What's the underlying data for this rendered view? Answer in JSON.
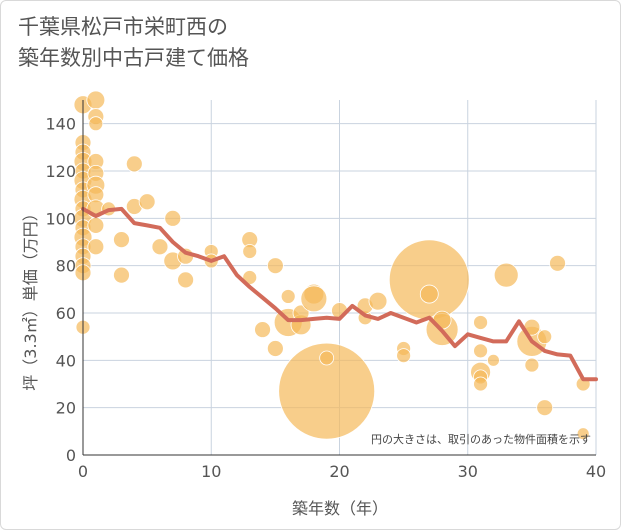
{
  "title_line1": "千葉県松戸市栄町西の",
  "title_line2": "築年数別中古戸建て価格",
  "chart_data": {
    "type": "scatter",
    "xlabel": "築年数（年）",
    "ylabel": "坪（3.3㎡）単価（万円）",
    "xlim": [
      0,
      40
    ],
    "ylim": [
      0,
      150
    ],
    "xticks": [
      0,
      10,
      20,
      30,
      40
    ],
    "yticks": [
      0,
      20,
      40,
      60,
      80,
      100,
      120,
      140
    ],
    "note": "円の大きさは、取引のあった物件面積を示す",
    "bubble_color": "#f5b95a",
    "line_color": "#d26b5a",
    "points": [
      {
        "x": 0,
        "y": 148,
        "s": 9
      },
      {
        "x": 0,
        "y": 132,
        "s": 8
      },
      {
        "x": 0,
        "y": 128,
        "s": 8
      },
      {
        "x": 0,
        "y": 124,
        "s": 9
      },
      {
        "x": 0,
        "y": 120,
        "s": 8
      },
      {
        "x": 0,
        "y": 116,
        "s": 9
      },
      {
        "x": 0,
        "y": 112,
        "s": 8
      },
      {
        "x": 0,
        "y": 108,
        "s": 9
      },
      {
        "x": 0,
        "y": 104,
        "s": 8
      },
      {
        "x": 0,
        "y": 100,
        "s": 9
      },
      {
        "x": 0,
        "y": 96,
        "s": 8
      },
      {
        "x": 0,
        "y": 92,
        "s": 9
      },
      {
        "x": 0,
        "y": 88,
        "s": 8
      },
      {
        "x": 0,
        "y": 84,
        "s": 8
      },
      {
        "x": 0,
        "y": 80,
        "s": 8
      },
      {
        "x": 0,
        "y": 77,
        "s": 8
      },
      {
        "x": 0,
        "y": 54,
        "s": 7
      },
      {
        "x": 1,
        "y": 150,
        "s": 9
      },
      {
        "x": 1,
        "y": 143,
        "s": 8
      },
      {
        "x": 1,
        "y": 140,
        "s": 7
      },
      {
        "x": 1,
        "y": 124,
        "s": 8
      },
      {
        "x": 1,
        "y": 119,
        "s": 8
      },
      {
        "x": 1,
        "y": 114,
        "s": 9
      },
      {
        "x": 1,
        "y": 110,
        "s": 8
      },
      {
        "x": 1,
        "y": 104,
        "s": 9
      },
      {
        "x": 1,
        "y": 97,
        "s": 8
      },
      {
        "x": 1,
        "y": 88,
        "s": 8
      },
      {
        "x": 2,
        "y": 104,
        "s": 7
      },
      {
        "x": 3,
        "y": 91,
        "s": 8
      },
      {
        "x": 3,
        "y": 76,
        "s": 8
      },
      {
        "x": 4,
        "y": 123,
        "s": 8
      },
      {
        "x": 4,
        "y": 105,
        "s": 8
      },
      {
        "x": 5,
        "y": 107,
        "s": 8
      },
      {
        "x": 6,
        "y": 88,
        "s": 8
      },
      {
        "x": 7,
        "y": 100,
        "s": 8
      },
      {
        "x": 7,
        "y": 82,
        "s": 9
      },
      {
        "x": 8,
        "y": 84,
        "s": 8
      },
      {
        "x": 8,
        "y": 74,
        "s": 8
      },
      {
        "x": 10,
        "y": 86,
        "s": 7
      },
      {
        "x": 10,
        "y": 82,
        "s": 7
      },
      {
        "x": 13,
        "y": 91,
        "s": 8
      },
      {
        "x": 13,
        "y": 86,
        "s": 7
      },
      {
        "x": 13,
        "y": 75,
        "s": 7
      },
      {
        "x": 14,
        "y": 53,
        "s": 8
      },
      {
        "x": 15,
        "y": 80,
        "s": 8
      },
      {
        "x": 15,
        "y": 45,
        "s": 8
      },
      {
        "x": 16,
        "y": 67,
        "s": 7
      },
      {
        "x": 16,
        "y": 56,
        "s": 14
      },
      {
        "x": 17,
        "y": 55,
        "s": 10
      },
      {
        "x": 17,
        "y": 60,
        "s": 8
      },
      {
        "x": 18,
        "y": 68,
        "s": 10
      },
      {
        "x": 18,
        "y": 66,
        "s": 13
      },
      {
        "x": 19,
        "y": 27,
        "s": 48
      },
      {
        "x": 19,
        "y": 41,
        "s": 7
      },
      {
        "x": 20,
        "y": 61,
        "s": 8
      },
      {
        "x": 22,
        "y": 58,
        "s": 7
      },
      {
        "x": 22,
        "y": 63,
        "s": 8
      },
      {
        "x": 23,
        "y": 65,
        "s": 9
      },
      {
        "x": 25,
        "y": 45,
        "s": 7
      },
      {
        "x": 25,
        "y": 42,
        "s": 7
      },
      {
        "x": 27,
        "y": 74,
        "s": 40
      },
      {
        "x": 27,
        "y": 68,
        "s": 9
      },
      {
        "x": 28,
        "y": 53,
        "s": 16
      },
      {
        "x": 28,
        "y": 57,
        "s": 9
      },
      {
        "x": 31,
        "y": 56,
        "s": 7
      },
      {
        "x": 31,
        "y": 44,
        "s": 7
      },
      {
        "x": 31,
        "y": 35,
        "s": 10
      },
      {
        "x": 31,
        "y": 33,
        "s": 7
      },
      {
        "x": 31,
        "y": 30,
        "s": 7
      },
      {
        "x": 32,
        "y": 40,
        "s": 6
      },
      {
        "x": 33,
        "y": 76,
        "s": 12
      },
      {
        "x": 35,
        "y": 48,
        "s": 15
      },
      {
        "x": 35,
        "y": 54,
        "s": 8
      },
      {
        "x": 35,
        "y": 38,
        "s": 7
      },
      {
        "x": 36,
        "y": 50,
        "s": 7
      },
      {
        "x": 36,
        "y": 20,
        "s": 8
      },
      {
        "x": 37,
        "y": 81,
        "s": 8
      },
      {
        "x": 39,
        "y": 30,
        "s": 7
      },
      {
        "x": 39,
        "y": 9,
        "s": 6
      }
    ],
    "trend": {
      "x": [
        0,
        1,
        2,
        3,
        4,
        5,
        6,
        7,
        8,
        9,
        10,
        11,
        12,
        13,
        14,
        15,
        16,
        17,
        18,
        19,
        20,
        21,
        22,
        23,
        24,
        25,
        26,
        27,
        28,
        29,
        30,
        31,
        32,
        33,
        34,
        35,
        36,
        37,
        38,
        39,
        40
      ],
      "y": [
        104,
        101,
        103.5,
        104,
        98,
        97,
        96,
        90,
        85.5,
        84,
        82,
        84,
        76,
        71,
        66.5,
        62,
        57,
        57,
        57.5,
        58,
        57.5,
        63,
        59,
        57.5,
        60,
        58,
        56,
        58,
        52.5,
        46,
        51,
        49.5,
        48,
        48,
        56.5,
        48,
        44,
        42.5,
        42,
        32,
        32
      ]
    }
  }
}
